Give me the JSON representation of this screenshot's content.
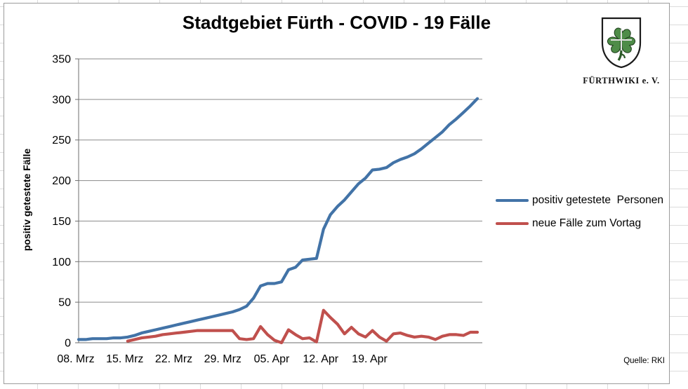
{
  "chart": {
    "title": "Stadtgebiet Fürth - COVID - 19 Fälle",
    "y_axis_title": "positiv getestete Fälle",
    "source_note": "Quelle: RKI",
    "legend": [
      {
        "label": "positiv getestete  Personen",
        "color": "#4273A7"
      },
      {
        "label": "neue Fälle zum Vortag",
        "color": "#C0504D"
      }
    ]
  },
  "logo": {
    "caption": "FÜRTHWIKI e. V.",
    "shield_green": "#4E8C48"
  },
  "chart_data": {
    "type": "line",
    "title": "Stadtgebiet Fürth - COVID - 19 Fälle",
    "xlabel": "",
    "ylabel": "positiv getestete Fälle",
    "ylim": [
      0,
      350
    ],
    "yticks": [
      0,
      50,
      100,
      150,
      200,
      250,
      300,
      350
    ],
    "x_tick_labels": [
      "08. Mrz",
      "15. Mrz",
      "22. Mrz",
      "29. Mrz",
      "05. Apr",
      "12. Apr",
      "19. Apr"
    ],
    "x_tick_interval_days": 7,
    "grid": true,
    "legend_position": "right",
    "series": [
      {
        "name": "positiv getestete Personen",
        "color": "#4273A7",
        "start_day_index": 0,
        "values": [
          4,
          4,
          5,
          5,
          5,
          6,
          6,
          7,
          9,
          12,
          14,
          16,
          18,
          20,
          22,
          24,
          26,
          28,
          30,
          32,
          34,
          36,
          38,
          41,
          45,
          55,
          70,
          73,
          73,
          75,
          90,
          93,
          102,
          103,
          104,
          140,
          158,
          168,
          176,
          186,
          196,
          203,
          213,
          214,
          216,
          222,
          226,
          229,
          233,
          239,
          246,
          253,
          260,
          269,
          276,
          284,
          292,
          301
        ]
      },
      {
        "name": "neue Fälle zum Vortag",
        "color": "#C0504D",
        "start_day_index": 7,
        "values": [
          2,
          4,
          6,
          7,
          8,
          10,
          11,
          12,
          13,
          14,
          15,
          15,
          15,
          15,
          15,
          15,
          5,
          4,
          5,
          20,
          10,
          3,
          0,
          16,
          10,
          5,
          6,
          1,
          40,
          31,
          23,
          11,
          19,
          11,
          7,
          15,
          7,
          2,
          11,
          12,
          9,
          7,
          8,
          7,
          4,
          8,
          10,
          10,
          9,
          13,
          13
        ]
      }
    ]
  }
}
